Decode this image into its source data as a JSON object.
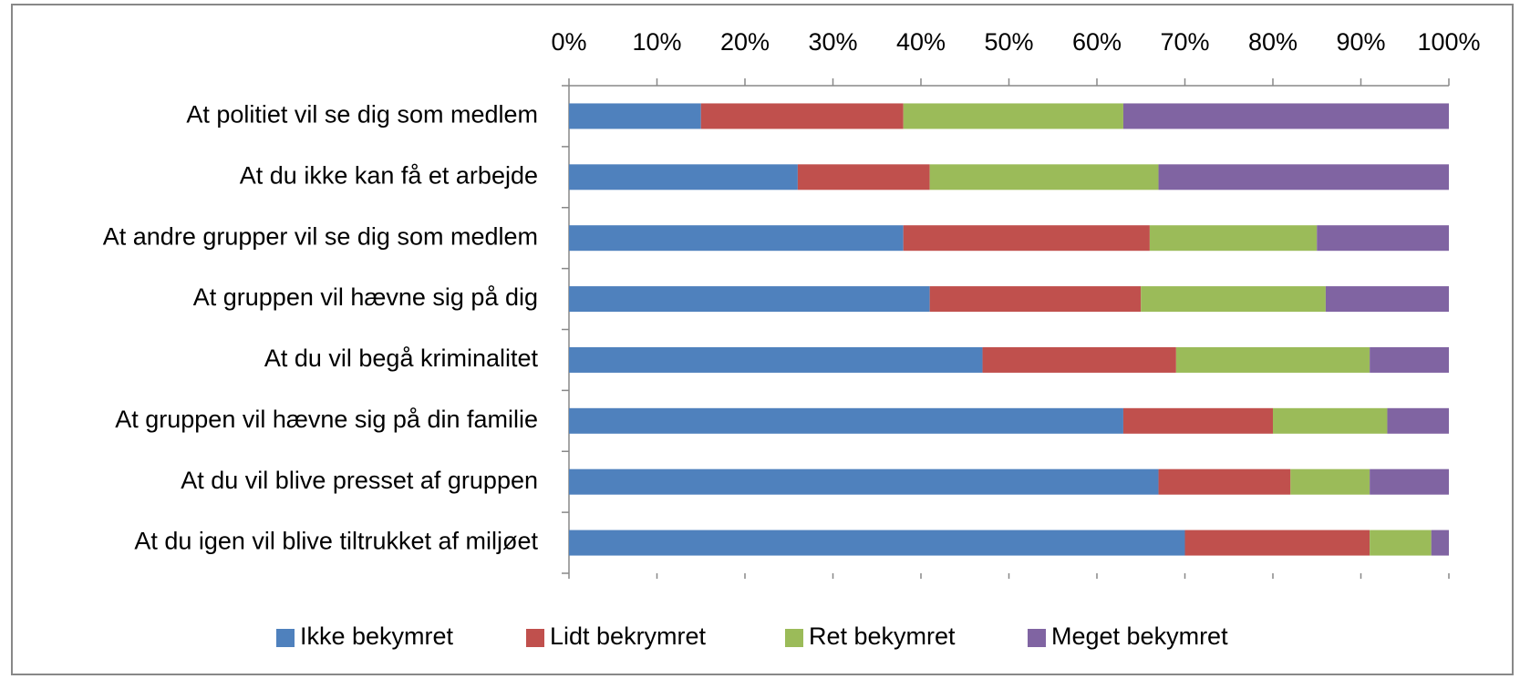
{
  "chart_data": {
    "type": "stacked_bar_horizontal",
    "categories": [
      "At politiet vil se dig som medlem",
      "At du ikke kan få et arbejde",
      "At andre grupper vil se dig som medlem",
      "At gruppen vil hævne sig på dig",
      "At du vil begå kriminalitet",
      "At gruppen vil hævne sig på din familie",
      "At du vil blive presset af gruppen",
      "At du igen vil blive tiltrukket af miljøet"
    ],
    "series": [
      {
        "name": "Ikke bekymret",
        "color": "#4f81bd",
        "values": [
          15,
          26,
          38,
          41,
          47,
          63,
          67,
          70
        ]
      },
      {
        "name": "Lidt bekrymret",
        "color": "#c0504d",
        "values": [
          23,
          15,
          28,
          24,
          22,
          17,
          15,
          21
        ]
      },
      {
        "name": "Ret bekymret",
        "color": "#9bbb59",
        "values": [
          25,
          26,
          19,
          21,
          22,
          13,
          9,
          7
        ]
      },
      {
        "name": "Meget bekymret",
        "color": "#8064a2",
        "values": [
          37,
          33,
          15,
          14,
          9,
          7,
          9,
          2
        ]
      }
    ],
    "xlim": [
      0,
      100
    ],
    "xticks": [
      {
        "value": 0,
        "label": "0%"
      },
      {
        "value": 10,
        "label": "10%"
      },
      {
        "value": 20,
        "label": "20%"
      },
      {
        "value": 30,
        "label": "30%"
      },
      {
        "value": 40,
        "label": "40%"
      },
      {
        "value": 50,
        "label": "50%"
      },
      {
        "value": 60,
        "label": "60%"
      },
      {
        "value": 70,
        "label": "70%"
      },
      {
        "value": 80,
        "label": "80%"
      },
      {
        "value": 90,
        "label": "90%"
      },
      {
        "value": 100,
        "label": "100%"
      }
    ],
    "legend": "bottom"
  }
}
